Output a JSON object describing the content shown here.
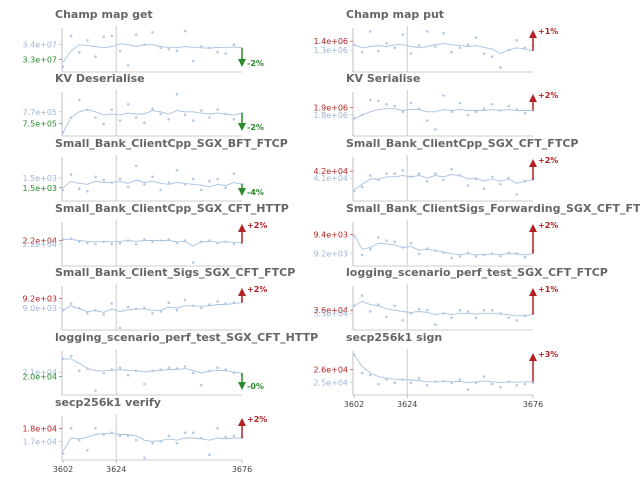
{
  "colors": {
    "title": "#666666",
    "line": "#a9c2e0",
    "points": "#b5c9e3",
    "vline": "#cccccc",
    "axis": "#999999",
    "improvement": "#2a8a2a",
    "regression": "#b22222",
    "ref_label": "#9fb6d6"
  },
  "chart_data": [
    {
      "type": "scatter",
      "title": "Champ map get",
      "xlim": [
        3602,
        3676
      ],
      "xticks": [],
      "ytick_labels": [
        {
          "text": "3.4e+07",
          "kind": "ref",
          "frac": 0.62
        },
        {
          "text": "3.3e+07",
          "kind": "cur",
          "frac": 0.28
        }
      ],
      "series": [
        {
          "points": [
            0.12,
            0.82,
            0.45,
            0.72,
            0.35,
            0.8,
            0.82,
            0.48,
            0.15,
            0.85,
            0.62,
            0.9,
            0.55,
            0.52,
            0.48,
            0.93,
            0.25,
            0.58,
            0.55,
            0.45,
            0.42,
            0.62,
            0.3
          ],
          "line": [
            0.22,
            0.48,
            0.62,
            0.6,
            0.58,
            0.55,
            0.58,
            0.64,
            0.62,
            0.58,
            0.62,
            0.62,
            0.58,
            0.56,
            0.55,
            0.58,
            0.56,
            0.55,
            0.54,
            0.56,
            0.55,
            0.57,
            0.55
          ]
        }
      ],
      "change": {
        "text": "-2%",
        "direction": "down"
      }
    },
    {
      "type": "scatter",
      "title": "Champ map put",
      "xlim": [
        3602,
        3676
      ],
      "xticks": [],
      "ytick_labels": [
        {
          "text": "1.4e+06",
          "kind": "cur",
          "frac": 0.7
        },
        {
          "text": "1.3e+06",
          "kind": "ref",
          "frac": 0.5
        }
      ],
      "series": [
        {
          "points": [
            0.62,
            0.45,
            0.92,
            0.48,
            0.65,
            0.55,
            0.85,
            0.42,
            0.6,
            0.92,
            0.58,
            0.88,
            0.45,
            0.55,
            0.62,
            0.78,
            0.42,
            0.35,
            0.1,
            0.5,
            0.72,
            0.55,
            0.6
          ],
          "line": [
            0.62,
            0.55,
            0.58,
            0.6,
            0.58,
            0.62,
            0.62,
            0.58,
            0.55,
            0.58,
            0.62,
            0.65,
            0.62,
            0.6,
            0.58,
            0.6,
            0.56,
            0.52,
            0.42,
            0.5,
            0.55,
            0.52,
            0.48
          ]
        }
      ],
      "change": {
        "text": "+1%",
        "direction": "up"
      }
    },
    {
      "type": "scatter",
      "title": "KV Deserialise",
      "xlim": [
        3602,
        3676
      ],
      "xticks": [],
      "ytick_labels": [
        {
          "text": "7.7e+05",
          "kind": "ref",
          "frac": 0.55
        },
        {
          "text": "7.5e+05",
          "kind": "cur",
          "frac": 0.28
        }
      ],
      "series": [
        {
          "points": [
            0.08,
            0.42,
            0.82,
            0.6,
            0.42,
            0.28,
            0.6,
            0.35,
            0.72,
            0.42,
            0.3,
            0.62,
            0.5,
            0.38,
            0.95,
            0.48,
            0.35,
            0.58,
            0.42,
            0.6,
            0.5,
            0.38,
            0.52
          ],
          "line": [
            0.08,
            0.42,
            0.55,
            0.6,
            0.55,
            0.48,
            0.5,
            0.48,
            0.52,
            0.5,
            0.5,
            0.58,
            0.55,
            0.5,
            0.58,
            0.55,
            0.55,
            0.52,
            0.5,
            0.52,
            0.5,
            0.48,
            0.52
          ]
        }
      ],
      "change": {
        "text": "-2%",
        "direction": "down"
      }
    },
    {
      "type": "scatter",
      "title": "KV Serialise",
      "xlim": [
        3602,
        3676
      ],
      "xticks": [],
      "ytick_labels": [
        {
          "text": "1.9e+06",
          "kind": "cur",
          "frac": 0.65
        },
        {
          "text": "1.8e+06",
          "kind": "ref",
          "frac": 0.48
        }
      ],
      "series": [
        {
          "points": [
            0.4,
            0.48,
            0.82,
            0.8,
            0.72,
            0.68,
            0.55,
            0.75,
            0.62,
            0.35,
            0.15,
            0.92,
            0.55,
            0.75,
            0.48,
            0.55,
            0.62,
            0.72,
            0.58,
            0.68,
            0.6,
            0.52,
            0.58
          ],
          "line": [
            0.38,
            0.48,
            0.55,
            0.6,
            0.62,
            0.62,
            0.58,
            0.6,
            0.6,
            0.55,
            0.55,
            0.6,
            0.58,
            0.6,
            0.58,
            0.58,
            0.58,
            0.6,
            0.58,
            0.6,
            0.58,
            0.58,
            0.58
          ]
        }
      ],
      "change": {
        "text": "+2%",
        "direction": "up"
      }
    },
    {
      "type": "scatter",
      "title": "Small_Bank_ClientCpp_SGX_BFT_FTCP",
      "xlim": [
        3602,
        3676
      ],
      "xticks": [],
      "ytick_labels": [
        {
          "text": "1.5e+03",
          "kind": "ref",
          "frac": 0.52
        },
        {
          "text": "1.5e+03",
          "kind": "cur",
          "frac": 0.3
        }
      ],
      "series": [
        {
          "points": [
            0.25,
            0.6,
            0.28,
            0.22,
            0.55,
            0.48,
            0.42,
            0.5,
            0.32,
            0.8,
            0.38,
            0.55,
            0.25,
            0.42,
            0.7,
            0.38,
            0.5,
            0.25,
            0.45,
            0.5,
            0.3,
            0.62,
            0.38
          ],
          "line": [
            0.3,
            0.45,
            0.4,
            0.38,
            0.45,
            0.42,
            0.42,
            0.45,
            0.4,
            0.48,
            0.42,
            0.45,
            0.4,
            0.38,
            0.42,
            0.4,
            0.38,
            0.36,
            0.32,
            0.38,
            0.35,
            0.42,
            0.38
          ]
        }
      ],
      "change": {
        "text": "-4%",
        "direction": "down"
      }
    },
    {
      "type": "scatter",
      "title": "Small_Bank_ClientCpp_SGX_CFT_FTCP",
      "xlim": [
        3602,
        3676
      ],
      "xticks": [],
      "ytick_labels": [
        {
          "text": "4.2e+04",
          "kind": "cur",
          "frac": 0.68
        },
        {
          "text": "4.1e+04",
          "kind": "ref",
          "frac": 0.52
        }
      ],
      "series": [
        {
          "points": [
            0.22,
            0.32,
            0.58,
            0.48,
            0.62,
            0.62,
            0.7,
            0.55,
            0.62,
            0.45,
            0.62,
            0.48,
            0.72,
            0.58,
            0.35,
            0.5,
            0.28,
            0.55,
            0.38,
            0.52,
            0.15,
            0.45,
            0.5
          ],
          "line": [
            0.25,
            0.38,
            0.5,
            0.5,
            0.55,
            0.55,
            0.58,
            0.55,
            0.58,
            0.52,
            0.58,
            0.55,
            0.6,
            0.58,
            0.5,
            0.52,
            0.45,
            0.5,
            0.45,
            0.5,
            0.4,
            0.45,
            0.48
          ]
        }
      ],
      "change": {
        "text": "+2%",
        "direction": "up"
      }
    },
    {
      "type": "scatter",
      "title": "Small_Bank_ClientCpp_SGX_CFT_HTTP",
      "xlim": [
        3602,
        3676
      ],
      "xticks": [],
      "ytick_labels": [
        {
          "text": "2.2e+04",
          "kind": "cur",
          "frac": 0.58
        },
        {
          "text": "2.2e+04",
          "kind": "ref",
          "frac": 0.5
        }
      ],
      "series": [
        {
          "points": [
            0.6,
            0.62,
            0.55,
            0.52,
            0.5,
            0.55,
            0.5,
            0.52,
            0.58,
            0.5,
            0.6,
            0.55,
            0.58,
            0.6,
            0.52,
            0.58,
            0.08,
            0.55,
            0.58,
            0.52,
            0.55,
            0.5,
            0.52
          ],
          "line": [
            0.6,
            0.6,
            0.58,
            0.56,
            0.55,
            0.56,
            0.55,
            0.56,
            0.58,
            0.56,
            0.58,
            0.58,
            0.58,
            0.58,
            0.55,
            0.56,
            0.45,
            0.55,
            0.56,
            0.54,
            0.55,
            0.54,
            0.52
          ]
        }
      ],
      "change": {
        "text": "+2%",
        "direction": "up"
      }
    },
    {
      "type": "scatter",
      "title": "Small_Bank_ClientSigs_Forwarding_SGX_CFT_FTCP",
      "xlim": [
        3602,
        3676
      ],
      "xticks": [],
      "ytick_labels": [
        {
          "text": "9.4e+03",
          "kind": "cur",
          "frac": 0.72
        },
        {
          "text": "9.2e+03",
          "kind": "ref",
          "frac": 0.28
        }
      ],
      "series": [
        {
          "points": [
            0.68,
            0.25,
            0.38,
            0.65,
            0.58,
            0.55,
            0.42,
            0.52,
            0.28,
            0.4,
            0.35,
            0.3,
            0.18,
            0.22,
            0.3,
            0.22,
            0.25,
            0.28,
            0.22,
            0.3,
            0.28,
            0.2,
            0.35
          ],
          "line": [
            0.72,
            0.38,
            0.42,
            0.52,
            0.5,
            0.48,
            0.42,
            0.44,
            0.36,
            0.38,
            0.35,
            0.32,
            0.28,
            0.26,
            0.28,
            0.25,
            0.26,
            0.27,
            0.26,
            0.28,
            0.28,
            0.25,
            0.28
          ]
        }
      ],
      "change": {
        "text": "+2%",
        "direction": "up"
      }
    },
    {
      "type": "scatter",
      "title": "Small_Bank_Client_Sigs_SGX_CFT_FTCP",
      "xlim": [
        3602,
        3676
      ],
      "xticks": [],
      "ytick_labels": [
        {
          "text": "9.2e+03",
          "kind": "cur",
          "frac": 0.72
        },
        {
          "text": "9.0e+03",
          "kind": "ref",
          "frac": 0.5
        }
      ],
      "series": [
        {
          "points": [
            0.45,
            0.6,
            0.5,
            0.38,
            0.45,
            0.35,
            0.6,
            0.05,
            0.52,
            0.48,
            0.5,
            0.38,
            0.42,
            0.62,
            0.45,
            0.68,
            0.55,
            0.5,
            0.58,
            0.65,
            0.6,
            0.62,
            0.68
          ],
          "line": [
            0.45,
            0.55,
            0.48,
            0.42,
            0.44,
            0.4,
            0.48,
            0.42,
            0.46,
            0.48,
            0.48,
            0.44,
            0.45,
            0.52,
            0.5,
            0.55,
            0.55,
            0.54,
            0.55,
            0.58,
            0.58,
            0.6,
            0.62
          ]
        }
      ],
      "change": {
        "text": "+2%",
        "direction": "up"
      }
    },
    {
      "type": "scatter",
      "title": "logging_scenario_perf_test_SGX_CFT_FTCP",
      "xlim": [
        3602,
        3676
      ],
      "xticks": [],
      "ytick_labels": [
        {
          "text": "3.6e+04",
          "kind": "cur",
          "frac": 0.45
        },
        {
          "text": "3.5e+04",
          "kind": "ref",
          "frac": 0.38
        }
      ],
      "series": [
        {
          "points": [
            0.55,
            0.78,
            0.42,
            0.58,
            0.3,
            0.55,
            0.22,
            0.38,
            0.48,
            0.45,
            0.12,
            0.38,
            0.28,
            0.45,
            0.42,
            0.28,
            0.45,
            0.45,
            0.38,
            0.28,
            0.22,
            0.32,
            0.38
          ],
          "line": [
            0.55,
            0.65,
            0.58,
            0.55,
            0.48,
            0.45,
            0.42,
            0.4,
            0.42,
            0.4,
            0.35,
            0.38,
            0.35,
            0.38,
            0.38,
            0.36,
            0.38,
            0.38,
            0.36,
            0.35,
            0.32,
            0.33,
            0.35
          ]
        }
      ],
      "change": {
        "text": "+1%",
        "direction": "up"
      }
    },
    {
      "type": "scatter",
      "title": "logging_scenario_perf_test_SGX_CFT_HTTP",
      "xlim": [
        3602,
        3676
      ],
      "xticks": [],
      "ytick_labels": [
        {
          "text": "2.1e+04",
          "kind": "ref",
          "frac": 0.52
        },
        {
          "text": "2.0e+04",
          "kind": "cur",
          "frac": 0.42
        }
      ],
      "series": [
        {
          "points": [
            0.82,
            0.88,
            0.55,
            0.6,
            0.1,
            0.5,
            0.58,
            0.62,
            0.45,
            0.55,
            0.25,
            0.55,
            0.58,
            0.62,
            0.6,
            0.65,
            0.5,
            0.22,
            0.55,
            0.62,
            0.58,
            0.5,
            0.45
          ],
          "line": [
            0.82,
            0.82,
            0.72,
            0.6,
            0.55,
            0.55,
            0.56,
            0.58,
            0.56,
            0.56,
            0.52,
            0.55,
            0.56,
            0.58,
            0.58,
            0.6,
            0.56,
            0.5,
            0.54,
            0.56,
            0.55,
            0.52,
            0.5
          ]
        }
      ],
      "change": {
        "text": "-0%",
        "direction": "down"
      }
    },
    {
      "type": "scatter",
      "title": "secp256k1 sign",
      "xlim": [
        3602,
        3676
      ],
      "xticks": [
        3602,
        3624,
        3676
      ],
      "ytick_labels": [
        {
          "text": "2.6e+04",
          "kind": "cur",
          "frac": 0.58
        },
        {
          "text": "2.5e+04",
          "kind": "ref",
          "frac": 0.28
        }
      ],
      "series": [
        {
          "points": [
            0.92,
            0.5,
            0.45,
            0.25,
            0.35,
            0.28,
            0.35,
            0.28,
            0.38,
            0.22,
            0.3,
            0.32,
            0.28,
            0.35,
            0.12,
            0.28,
            0.42,
            0.25,
            0.18,
            0.3,
            0.22,
            0.25,
            0.28
          ],
          "line": [
            0.92,
            0.65,
            0.5,
            0.42,
            0.38,
            0.36,
            0.35,
            0.34,
            0.33,
            0.3,
            0.3,
            0.31,
            0.3,
            0.31,
            0.28,
            0.3,
            0.32,
            0.3,
            0.28,
            0.3,
            0.29,
            0.3,
            0.3
          ]
        }
      ],
      "change": {
        "text": "+3%",
        "direction": "up"
      }
    },
    {
      "type": "scatter",
      "title": "secp256k1 verify",
      "xlim": [
        3602,
        3676
      ],
      "xticks": [
        3602,
        3624,
        3676
      ],
      "ytick_labels": [
        {
          "text": "1.8e+04",
          "kind": "cur",
          "frac": 0.72
        },
        {
          "text": "1.7e+04",
          "kind": "ref",
          "frac": 0.42
        }
      ],
      "series": [
        {
          "points": [
            0.15,
            0.72,
            0.45,
            0.22,
            0.72,
            0.58,
            0.62,
            0.55,
            0.55,
            0.45,
            0.05,
            0.38,
            0.42,
            0.55,
            0.38,
            0.62,
            0.62,
            0.5,
            0.12,
            0.72,
            0.52,
            0.55,
            0.5
          ],
          "line": [
            0.2,
            0.5,
            0.48,
            0.52,
            0.58,
            0.6,
            0.6,
            0.58,
            0.58,
            0.55,
            0.45,
            0.42,
            0.44,
            0.48,
            0.45,
            0.5,
            0.5,
            0.48,
            0.45,
            0.5,
            0.48,
            0.5,
            0.5
          ]
        }
      ],
      "change": {
        "text": "+2%",
        "direction": "up"
      }
    }
  ]
}
